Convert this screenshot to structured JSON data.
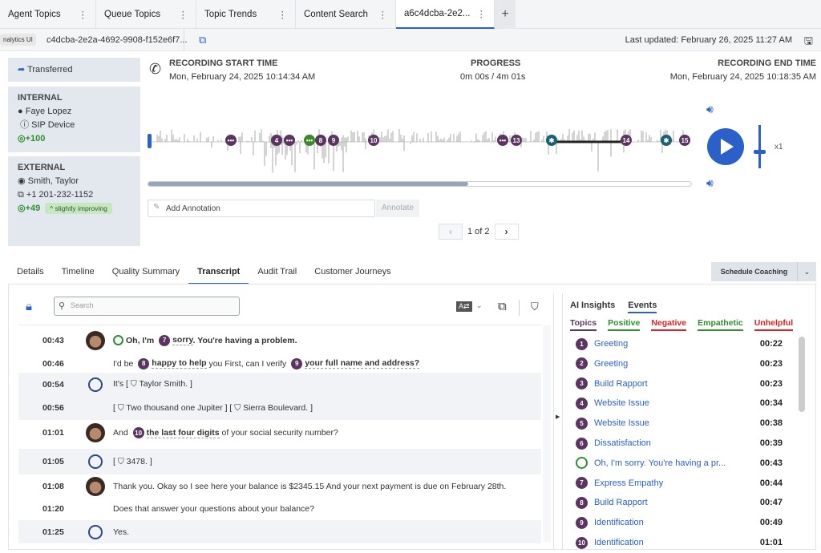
{
  "tabs": [
    {
      "label": "Agent Topics"
    },
    {
      "label": "Queue Topics"
    },
    {
      "label": "Topic Trends"
    },
    {
      "label": "Content Search"
    },
    {
      "label": "a6c4dcba-2e2..."
    }
  ],
  "subbar": {
    "id": "c4dcba-2e2a-4692-9908-f152e6f7...",
    "tooltip": "nalytics UI",
    "last_updated": "Last updated: February 26, 2025 11:27 AM"
  },
  "left": {
    "status": "Transferred",
    "internal": {
      "heading": "INTERNAL",
      "name": "Faye Lopez",
      "device": "SIP Device",
      "score": "+100"
    },
    "external": {
      "heading": "EXTERNAL",
      "name": "Smith, Taylor",
      "phone": "+1 201-232-1152",
      "score": "+49",
      "trend": "slightly improving"
    }
  },
  "recording": {
    "start_label": "RECORDING START TIME",
    "start": "Mon, February 24, 2025 10:14:34 AM",
    "progress_label": "PROGRESS",
    "progress": "0m 00s / 4m 01s",
    "end_label": "RECORDING END TIME",
    "end": "Mon, February 24, 2025 10:18:35 AM",
    "playback_progress_percent": 59,
    "speed": "x1"
  },
  "markers": [
    {
      "label": "•••"
    },
    {
      "label": "4"
    },
    {
      "label": "•••"
    },
    {
      "label": "•••",
      "color": "#3a8a2a"
    },
    {
      "label": "8"
    },
    {
      "label": "9"
    },
    {
      "label": "10"
    },
    {
      "label": "•••"
    },
    {
      "label": "13"
    },
    {
      "label": "✱",
      "color": "#1b6075"
    },
    {
      "label": "14"
    },
    {
      "label": "✱",
      "color": "#1b6075"
    },
    {
      "label": "15"
    }
  ],
  "annotation": {
    "placeholder": "Add Annotation",
    "button": "Annotate"
  },
  "pager": {
    "text": "1 of 2"
  },
  "detail_tabs": [
    {
      "label": "Details"
    },
    {
      "label": "Timeline"
    },
    {
      "label": "Quality Summary"
    },
    {
      "label": "Transcript"
    },
    {
      "label": "Audit Trail"
    },
    {
      "label": "Customer Journeys"
    }
  ],
  "coaching": {
    "label": "Schedule Coaching"
  },
  "transcript": {
    "search_placeholder": "Search",
    "rows": [
      {
        "time": "00:43",
        "speaker": "agent",
        "segs": [
          {
            "emoji": true
          },
          {
            "t": "Oh, I'm ",
            "bold": true
          },
          {
            "badge": "7"
          },
          {
            "t": "sorry",
            "hl": true
          },
          {
            "t": ". You're having a problem.",
            "bold": true
          }
        ]
      },
      {
        "time": "00:46",
        "speaker": "",
        "segs": [
          {
            "t": "I'd be "
          },
          {
            "badge": "8"
          },
          {
            "t": "happy to help",
            "hl": true
          },
          {
            "t": " you First, can I verify "
          },
          {
            "badge": "9"
          },
          {
            "t": "your full name and address?",
            "hl": true
          }
        ]
      },
      {
        "time": "00:54",
        "speaker": "customer",
        "segs": [
          {
            "t": "It's [ ⛉ Taylor Smith. ]"
          }
        ]
      },
      {
        "time": "00:56",
        "speaker": "",
        "segs": [
          {
            "t": "[ ⛉ Two thousand one Jupiter ] [ ⛉ Sierra Boulevard. ]"
          }
        ]
      },
      {
        "time": "01:01",
        "speaker": "agent",
        "segs": [
          {
            "t": "And "
          },
          {
            "badge": "10"
          },
          {
            "t": "the last four digits",
            "hl": true
          },
          {
            "t": " of your social security number?"
          }
        ]
      },
      {
        "time": "01:05",
        "speaker": "customer",
        "segs": [
          {
            "t": "[ ⛉ 3478. ]"
          }
        ]
      },
      {
        "time": "01:08",
        "speaker": "agent",
        "segs": [
          {
            "t": "Thank you. Okay so I see here your balance is $2345.15 And your next payment is due on February 28th."
          }
        ]
      },
      {
        "time": "01:20",
        "speaker": "",
        "segs": [
          {
            "t": "Does that answer your questions about your balance?"
          }
        ]
      },
      {
        "time": "01:25",
        "speaker": "customer",
        "segs": [
          {
            "t": "Yes."
          }
        ]
      }
    ]
  },
  "insights": {
    "tabs": [
      {
        "label": "AI Insights"
      },
      {
        "label": "Events"
      }
    ],
    "filters": [
      {
        "label": "Topics",
        "color": "#5a3560"
      },
      {
        "label": "Positive",
        "color": "#2f8f2f"
      },
      {
        "label": "Negative",
        "color": "#e02020"
      },
      {
        "label": "Empathetic",
        "color": "#2f8f2f"
      },
      {
        "label": "Unhelpful",
        "color": "#e02020"
      }
    ],
    "events": [
      {
        "n": "1",
        "name": "Greeting",
        "time": "00:22"
      },
      {
        "n": "2",
        "name": "Greeting",
        "time": "00:23"
      },
      {
        "n": "3",
        "name": "Build Rapport",
        "time": "00:23"
      },
      {
        "n": "4",
        "name": "Website Issue",
        "time": "00:34"
      },
      {
        "n": "5",
        "name": "Website Issue",
        "time": "00:38"
      },
      {
        "n": "6",
        "name": "Dissatisfaction",
        "time": "00:39"
      },
      {
        "n": "",
        "emoji": true,
        "name": "Oh, I'm sorry. You're having a pr...",
        "time": "00:43"
      },
      {
        "n": "7",
        "name": "Express Empathy",
        "time": "00:44"
      },
      {
        "n": "8",
        "name": "Build Rapport",
        "time": "00:47"
      },
      {
        "n": "9",
        "name": "Identification",
        "time": "00:49"
      },
      {
        "n": "10",
        "name": "Identification",
        "time": "01:01"
      }
    ]
  }
}
